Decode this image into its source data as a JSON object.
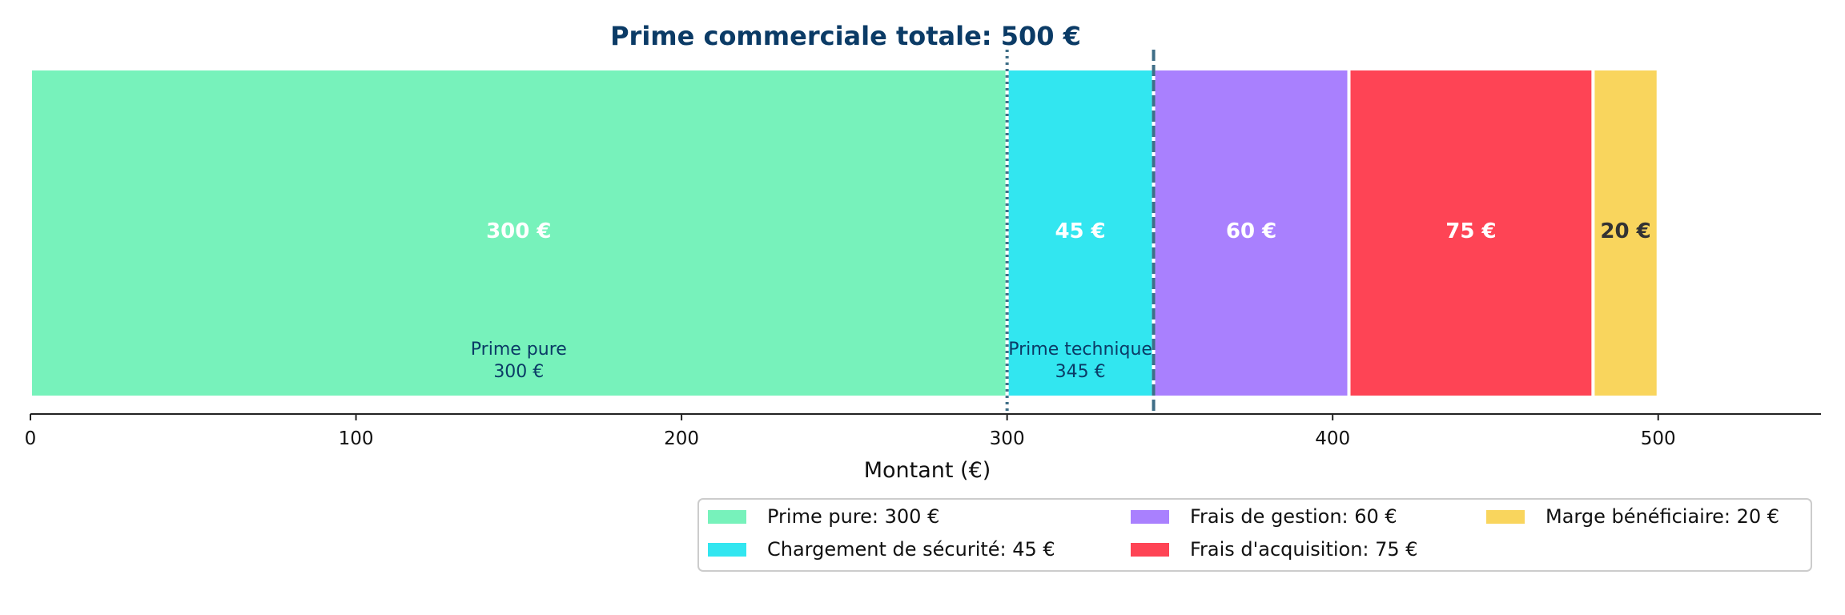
{
  "chart_data": {
    "type": "bar",
    "orientation": "horizontal-stacked",
    "title": "Prime commerciale totale: 500 €",
    "xlabel": "Montant (€)",
    "xlim": [
      0,
      550
    ],
    "xticks": [
      0,
      100,
      200,
      300,
      400,
      500
    ],
    "segments": [
      {
        "name": "Prime pure",
        "value": 300,
        "label": "300 €",
        "color": "#77f2bb",
        "label_color": "#ffffff",
        "legend": "Prime pure: 300 €"
      },
      {
        "name": "Chargement de sécurité",
        "value": 45,
        "label": "45 €",
        "color": "#32e6f0",
        "label_color": "#ffffff",
        "legend": "Chargement de sécurité: 45 €"
      },
      {
        "name": "Frais de gestion",
        "value": 60,
        "label": "60 €",
        "color": "#a980fe",
        "label_color": "#ffffff",
        "legend": "Frais de gestion: 60 €"
      },
      {
        "name": "Frais d'acquisition",
        "value": 75,
        "label": "75 €",
        "color": "#fe4455",
        "label_color": "#ffffff",
        "legend": "Frais d'acquisition: 75 €"
      },
      {
        "name": "Marge bénéficiaire",
        "value": 20,
        "label": "20 €",
        "color": "#f9d55d",
        "label_color": "#333333",
        "legend": "Marge bénéficiaire: 20 €"
      }
    ],
    "annotations": [
      {
        "x": 300,
        "center": 150,
        "style": "dotted",
        "line1": "Prime pure",
        "line2": "300 €"
      },
      {
        "x": 345,
        "center": 322.5,
        "style": "dashed",
        "line1": "Prime technique",
        "line2": "345 €"
      }
    ],
    "legend_position": "bottom-right",
    "grid": false
  }
}
